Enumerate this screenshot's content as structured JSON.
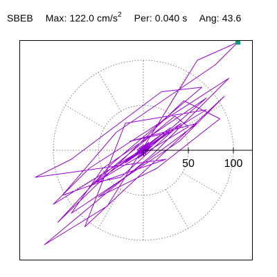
{
  "header": {
    "station": "SBEB",
    "max_label": "Max:",
    "max_value": "122.0 cm/s",
    "max_unit_power": "2",
    "per_label": "Per:",
    "per_value": "0.040 s",
    "ang_label": "Ang:",
    "ang_value": "43.6"
  },
  "chart_data": {
    "type": "scatter",
    "title": "SBEB  Max: 122.0 cm/s2  Per: 0.040 s  Ang: 43.6",
    "plot": "polar hodogram (particle motion orbit)",
    "units": "cm/s2",
    "max_amplitude": 122.0,
    "period_s": 0.04,
    "angle_deg": 43.6,
    "radial_ticks": [
      50,
      100
    ],
    "radial_tick_labels": [
      "50",
      "100"
    ],
    "polar_grid": {
      "rings": [
        50,
        100
      ],
      "spoke_angles_deg": [
        0,
        30,
        60,
        90,
        120,
        150,
        180,
        210,
        240,
        270,
        300,
        330
      ],
      "style": "dotted",
      "visible": true
    },
    "trace": {
      "color": "#9400d3",
      "points": [
        [
          -5,
          3
        ],
        [
          4,
          -2
        ],
        [
          -3,
          -4
        ],
        [
          2,
          5
        ],
        [
          6,
          1
        ],
        [
          -6,
          -1
        ],
        [
          1,
          -6
        ],
        [
          -2,
          4
        ],
        [
          5,
          3
        ],
        [
          -4,
          2
        ],
        [
          3,
          -5
        ],
        [
          0,
          6
        ],
        [
          -7,
          0
        ],
        [
          7,
          2
        ],
        [
          -1,
          -3
        ],
        [
          8,
          4
        ],
        [
          -8,
          -3
        ],
        [
          3,
          7
        ],
        [
          -3,
          -7
        ],
        [
          10,
          5
        ],
        [
          -10,
          -6
        ],
        [
          6,
          9
        ],
        [
          -6,
          -9
        ],
        [
          18,
          12
        ],
        [
          -20,
          -14
        ],
        [
          30,
          25
        ],
        [
          -34,
          -22
        ],
        [
          42,
          30
        ],
        [
          -25,
          -30
        ],
        [
          -55,
          -36
        ],
        [
          35,
          38
        ],
        [
          50,
          26
        ],
        [
          -60,
          -40
        ],
        [
          20,
          15
        ],
        [
          70,
          58
        ],
        [
          -45,
          -20
        ],
        [
          -80,
          -70
        ],
        [
          40,
          10
        ],
        [
          90,
          60
        ],
        [
          -65,
          -85
        ],
        [
          -20,
          30
        ],
        [
          70,
          45
        ],
        [
          -100,
          -60
        ],
        [
          -60,
          -20
        ],
        [
          95,
          80
        ],
        [
          10,
          -5
        ],
        [
          -110,
          -105
        ],
        [
          -40,
          -62
        ],
        [
          60,
          100
        ],
        [
          105,
          120
        ],
        [
          80,
          95
        ],
        [
          -30,
          20
        ],
        [
          -90,
          -50
        ],
        [
          25,
          -10
        ],
        [
          -120,
          -30
        ],
        [
          -80,
          -10
        ],
        [
          20,
          65
        ],
        [
          65,
          70
        ],
        [
          -35,
          -15
        ],
        [
          -95,
          -80
        ],
        [
          45,
          55
        ],
        [
          85,
          35
        ],
        [
          15,
          -20
        ],
        [
          -50,
          -52
        ],
        [
          60,
          30
        ],
        [
          -15,
          10
        ],
        [
          30,
          20
        ],
        [
          -28,
          -18
        ],
        [
          12,
          8
        ],
        [
          -9,
          -6
        ],
        [
          5,
          4
        ],
        [
          -3,
          -2
        ],
        [
          1,
          1
        ]
      ],
      "end_marker": {
        "x": 105,
        "y": 120,
        "color": "#009b77",
        "shape": "square"
      }
    },
    "grid": true,
    "axes": "positive x-axis and vertical zero line through origin",
    "legend": "none"
  }
}
